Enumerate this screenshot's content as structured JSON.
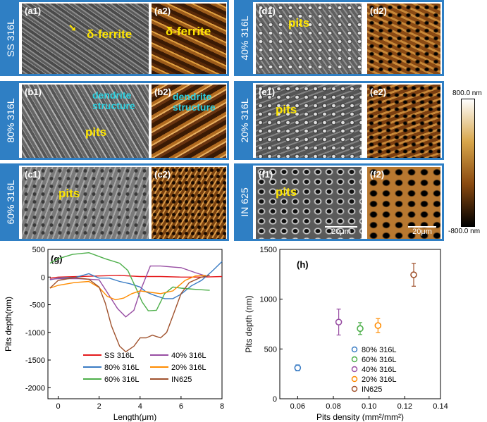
{
  "panels": {
    "a": {
      "side": "SS 316L",
      "sem": "(a1)",
      "afm": "(a2)",
      "sem_note": "δ-ferrite",
      "afm_note": "δ-ferrite"
    },
    "b": {
      "side": "80% 316L",
      "sem": "(b1)",
      "afm": "(b2)",
      "sem_note": "dendrite\nstructure",
      "sem_note2": "pits",
      "afm_note": "dendrite\nstructure"
    },
    "c": {
      "side": "60% 316L",
      "sem": "(c1)",
      "afm": "(c2)",
      "sem_note": "pits"
    },
    "d": {
      "side": "40% 316L",
      "sem": "(d1)",
      "afm": "(d2)",
      "sem_note": "pits"
    },
    "e": {
      "side": "20% 316L",
      "sem": "(e1)",
      "afm": "(e2)",
      "sem_note": "pits"
    },
    "f": {
      "side": "IN 625",
      "sem": "(f1)",
      "afm": "(f2)",
      "sem_note": "pits",
      "scale_sem": "20μm",
      "scale_afm": "20μm"
    }
  },
  "colorbar": {
    "max": "800.0 nm",
    "min": "-800.0 nm",
    "colors": [
      "#ffffff",
      "#d8a64a",
      "#8a4a10",
      "#000000"
    ]
  },
  "chart_data": [
    {
      "type": "line",
      "panel": "(g)",
      "xlabel": "Length(μm)",
      "ylabel": "Pits depth(nm)",
      "xlim": [
        -0.5,
        8
      ],
      "ylim": [
        -2200,
        500
      ],
      "xticks": [
        0,
        2,
        4,
        6,
        8
      ],
      "yticks": [
        500,
        0,
        -500,
        -1000,
        -1500,
        -2000
      ],
      "legend": [
        "SS 316L",
        "40% 316L",
        "80% 316L",
        "20% 316L",
        "60% 316L",
        "IN625"
      ],
      "series": [
        {
          "name": "SS 316L",
          "color": "#e41a1c",
          "x": [
            -0.4,
            0,
            1,
            2,
            3,
            4,
            5,
            6,
            7,
            8
          ],
          "y": [
            -20,
            0,
            10,
            20,
            30,
            10,
            10,
            0,
            0,
            10
          ]
        },
        {
          "name": "80% 316L",
          "color": "#3a7cc4",
          "x": [
            -0.4,
            0,
            0.8,
            1.5,
            2,
            2.5,
            3,
            3.5,
            4,
            4.3,
            4.7,
            5.2,
            5.6,
            6,
            6.5,
            7,
            7.5,
            8
          ],
          "y": [
            -50,
            -20,
            -10,
            60,
            -20,
            -20,
            -80,
            -120,
            -180,
            -270,
            -330,
            -390,
            -390,
            -310,
            -160,
            -60,
            100,
            280
          ]
        },
        {
          "name": "60% 316L",
          "color": "#4daf4a",
          "x": [
            -0.4,
            0,
            0.7,
            1.5,
            2.3,
            3,
            3.4,
            3.8,
            4.1,
            4.4,
            4.8,
            5.2,
            5.6,
            6,
            6.6,
            7,
            7.4
          ],
          "y": [
            250,
            330,
            410,
            440,
            330,
            250,
            120,
            -200,
            -450,
            -610,
            -600,
            -300,
            -180,
            -200,
            -220,
            -230,
            -240
          ]
        },
        {
          "name": "40% 316L",
          "color": "#984ea3",
          "x": [
            -0.4,
            0,
            1,
            2,
            2.4,
            2.9,
            3.3,
            3.7,
            4,
            4.5,
            5,
            5.6,
            6,
            6.7,
            7.2
          ],
          "y": [
            -40,
            -30,
            -30,
            -50,
            -280,
            -570,
            -720,
            -600,
            -260,
            200,
            200,
            180,
            170,
            80,
            20
          ]
        },
        {
          "name": "20% 316L",
          "color": "#ff8c00",
          "x": [
            -0.4,
            0,
            0.8,
            1.5,
            2,
            2.4,
            2.8,
            3.2,
            3.6,
            4,
            4.4,
            5,
            5.6,
            6.2,
            6.7,
            7.2
          ],
          "y": [
            -200,
            -150,
            -100,
            -80,
            -190,
            -350,
            -410,
            -380,
            -300,
            -250,
            -270,
            -300,
            -250,
            -60,
            20,
            30
          ]
        },
        {
          "name": "IN625",
          "color": "#a0522d",
          "x": [
            -0.4,
            0,
            0.8,
            1.5,
            2,
            2.3,
            2.6,
            3,
            3.3,
            3.7,
            4,
            4.3,
            4.6,
            5,
            5.3,
            5.6,
            6,
            6.4,
            7,
            7.4
          ],
          "y": [
            -200,
            -60,
            -10,
            -40,
            -180,
            -470,
            -880,
            -1250,
            -1350,
            -1250,
            -1100,
            -1100,
            -1050,
            -1100,
            -1000,
            -700,
            -300,
            -100,
            0,
            30
          ]
        }
      ]
    },
    {
      "type": "scatter",
      "panel": "(h)",
      "xlabel": "Pits density (mm²/mm²)",
      "ylabel": "Pits depth (nm)",
      "xlim": [
        0.05,
        0.14
      ],
      "ylim": [
        0,
        1500
      ],
      "xticks": [
        0.06,
        0.08,
        0.1,
        0.12,
        0.14
      ],
      "xtick_labels": [
        "0.06",
        "0.08",
        "0.10",
        "0.12",
        "0.14"
      ],
      "yticks": [
        0,
        500,
        1000,
        1500
      ],
      "points": [
        {
          "name": "80% 316L",
          "color": "#3a7cc4",
          "x": 0.06,
          "y": 310,
          "err": 30
        },
        {
          "name": "60% 316L",
          "color": "#4daf4a",
          "x": 0.095,
          "y": 705,
          "err": 60
        },
        {
          "name": "40% 316L",
          "color": "#984ea3",
          "x": 0.083,
          "y": 770,
          "err": 130
        },
        {
          "name": "20% 316L",
          "color": "#ff8c00",
          "x": 0.105,
          "y": 735,
          "err": 70
        },
        {
          "name": "IN625",
          "color": "#a0522d",
          "x": 0.125,
          "y": 1245,
          "err": 115
        }
      ]
    }
  ]
}
